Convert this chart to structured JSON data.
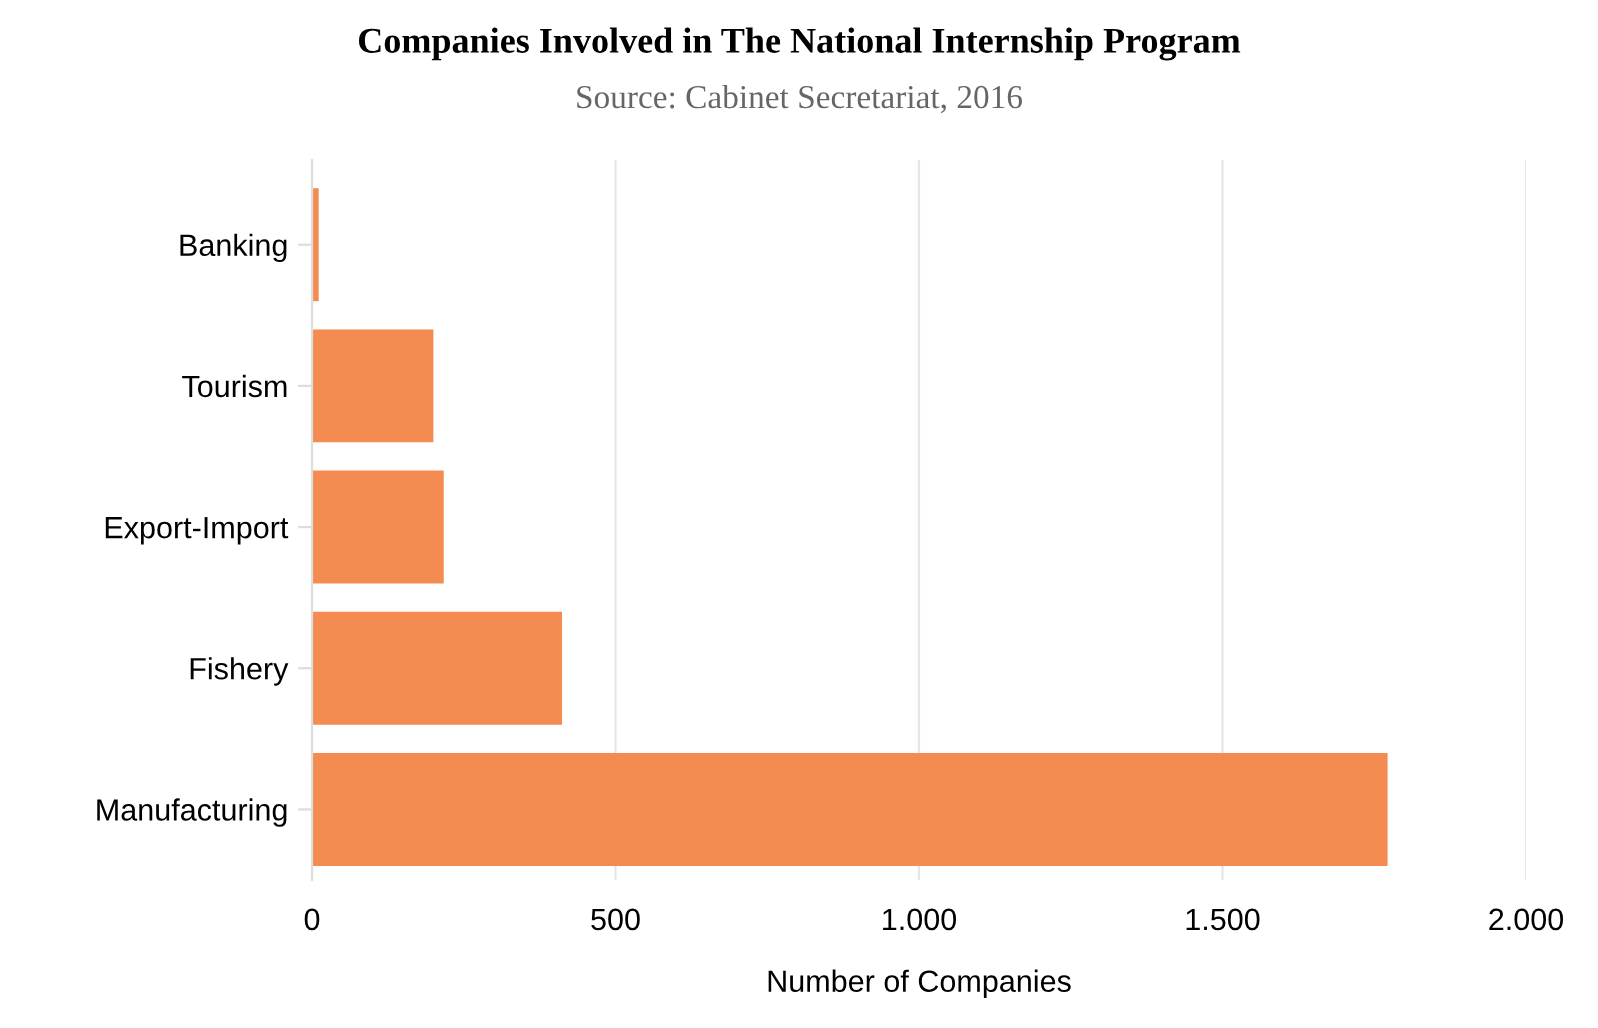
{
  "chart_data": {
    "type": "bar",
    "orientation": "horizontal",
    "title": "Companies Involved in The National Internship Program",
    "subtitle": "Source: Cabinet Secretariat, 2016",
    "xlabel": "Number of Companies",
    "categories": [
      "Banking",
      "Tourism",
      "Export-Import",
      "Fishery",
      "Manufacturing"
    ],
    "values": [
      11,
      200,
      217,
      412,
      1772
    ],
    "color": "#f48c51",
    "xlim": [
      0,
      2000
    ],
    "xticks": [
      {
        "value": 0,
        "label": "0"
      },
      {
        "value": 500,
        "label": "500"
      },
      {
        "value": 1000,
        "label": "1.000"
      },
      {
        "value": 1500,
        "label": "1.500"
      },
      {
        "value": 2000,
        "label": "2.000"
      }
    ],
    "grid": "x",
    "legend": false
  }
}
